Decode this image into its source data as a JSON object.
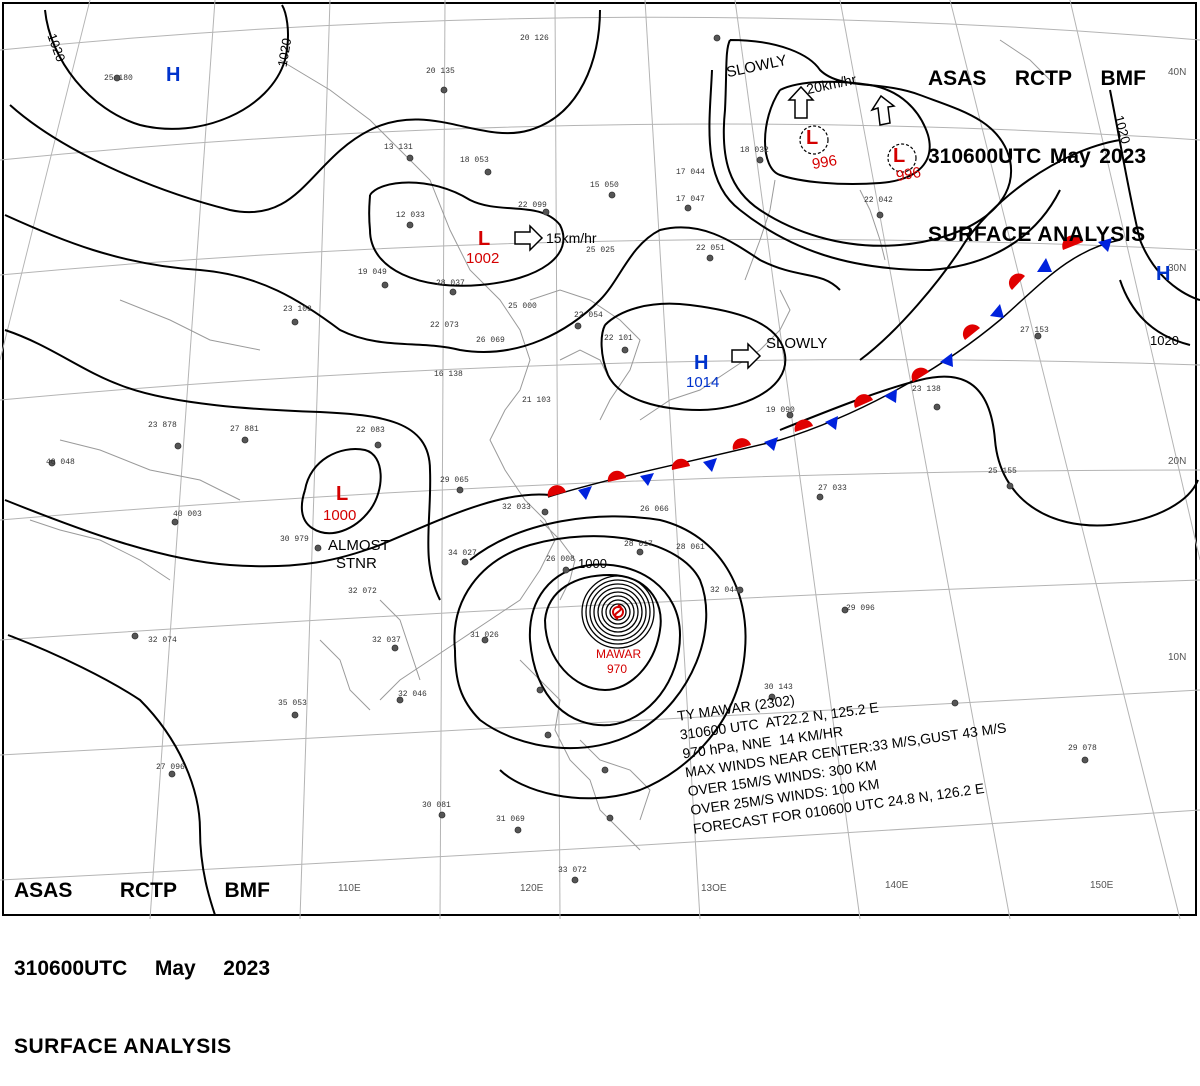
{
  "header": {
    "station": "ASAS",
    "center": "RCTP",
    "office": "BMF",
    "time": "310600UTC",
    "month": "May",
    "year": "2023",
    "title": "SURFACE ANALYSIS"
  },
  "grid_labels": {
    "longitudes": [
      "110E",
      "120E",
      "13OE",
      "140E",
      "150E"
    ],
    "latitudes": [
      "40N",
      "30N",
      "20N",
      "10N"
    ]
  },
  "isobar_labels": [
    "1020",
    "1020",
    "1020",
    "1020",
    "1000"
  ],
  "pressure_systems": [
    {
      "type": "H",
      "symbol": "H",
      "value": ""
    },
    {
      "type": "L",
      "symbol": "L",
      "value": "1002"
    },
    {
      "type": "L",
      "symbol": "L",
      "value": "1000"
    },
    {
      "type": "H",
      "symbol": "H",
      "value": "1014"
    },
    {
      "type": "L",
      "symbol": "L",
      "value": "996"
    },
    {
      "type": "L",
      "symbol": "L",
      "value": "996"
    },
    {
      "type": "H",
      "symbol": "H",
      "value": ""
    }
  ],
  "movement_labels": {
    "low_1002": "15km/hr",
    "high_1014": "SLOWLY",
    "low_996_a": "SLOWLY",
    "low_996_b": "20km/hr",
    "low_1000_line1": "ALMOST",
    "low_1000_line2": "STNR"
  },
  "typhoon": {
    "name": "MAWAR",
    "pressure": "970",
    "info": [
      "TY MAWAR (2302)",
      "310600 UTC  AT22.2 N, 125.2 E",
      "970 hPa, NNE  14 KM/HR",
      "MAX WINDS NEAR CENTER:33 M/S,GUST 43 M/S",
      "OVER 15M/S WINDS: 300 KM",
      "OVER 25M/S WINDS: 100 KM",
      "FORECAST FOR 010600 UTC 24.8 N, 126.2 E"
    ]
  },
  "station_obs": [
    "25 180",
    "20 135",
    "20 126",
    "13 131",
    "18 053",
    "15 050",
    "17 044",
    "17 047",
    "12 033",
    "22 099",
    "25 025",
    "22 051",
    "19 049",
    "28 037",
    "25 000",
    "23 103",
    "22 073",
    "26 069",
    "22 054",
    "22 101",
    "16 138",
    "21 103",
    "27 881",
    "23 878",
    "22 083",
    "29 065",
    "32 033",
    "40 003",
    "30 979",
    "34 027",
    "26 008",
    "28 017",
    "32 072",
    "31 026",
    "32 037",
    "35 053",
    "32 046",
    "32 074",
    "27 096",
    "30 081",
    "31 069",
    "33 072",
    "29 078",
    "30 143",
    "29 096",
    "27 033",
    "23 138",
    "25 155",
    "27 153",
    "19 090",
    "40 048",
    "32 044",
    "22 042",
    "18 032",
    "26 066",
    "28 061"
  ],
  "colors": {
    "low": "#d40000",
    "high": "#0033cc",
    "isobar": "#000000",
    "coast": "#9a9a9a",
    "grid": "#b4b4b4",
    "warm_front": "#e00000",
    "cold_front": "#0022dd"
  }
}
